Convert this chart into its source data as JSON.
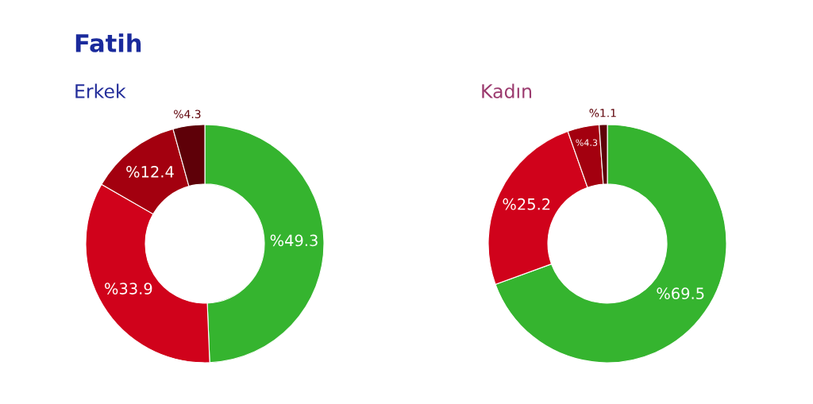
{
  "chart_data": [
    {
      "type": "donut",
      "title": "Fatih",
      "subtitle": "Erkek",
      "categories": [
        null,
        null,
        null,
        null
      ],
      "values": [
        49.3,
        33.9,
        12.4,
        4.3
      ],
      "colors": [
        "#35b42f",
        "#d0021b",
        "#a3000f",
        "#5e0008"
      ],
      "value_labels": [
        "%49.3",
        "%33.9",
        "%12.4",
        "%4.3"
      ]
    },
    {
      "type": "donut",
      "subtitle": "Kadın",
      "categories": [
        null,
        null,
        null,
        null
      ],
      "values": [
        69.5,
        25.2,
        4.3,
        1.1
      ],
      "colors": [
        "#35b42f",
        "#d0021b",
        "#a3000f",
        "#5e0008"
      ],
      "value_labels": [
        "%69.5",
        "%25.2",
        "%4.3",
        "%1.1"
      ]
    }
  ]
}
